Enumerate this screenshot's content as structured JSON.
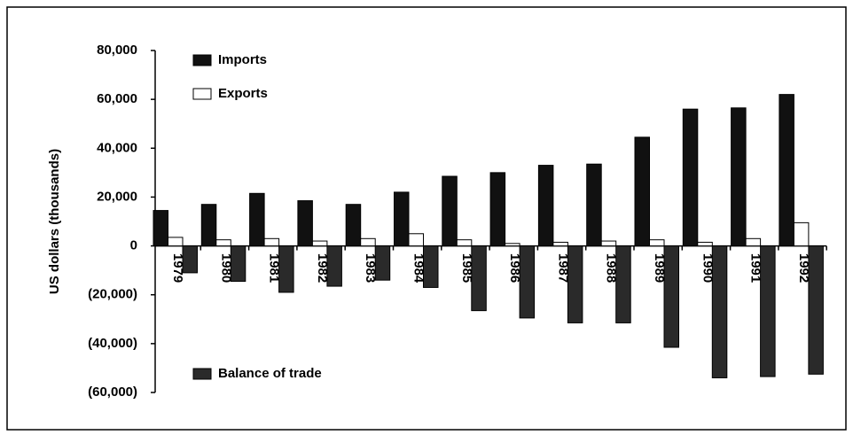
{
  "chart_data": {
    "type": "bar",
    "y_label": "US dollars (thousands)",
    "categories": [
      "1979",
      "1980",
      "1981",
      "1982",
      "1983",
      "1984",
      "1985",
      "1986",
      "1987",
      "1988",
      "1989",
      "1990",
      "1991",
      "1992"
    ],
    "series": [
      {
        "name": "Imports",
        "color": "#111111",
        "values": [
          14500,
          17000,
          21500,
          18500,
          17000,
          22000,
          28500,
          30000,
          33000,
          33500,
          44500,
          56000,
          56500,
          62000
        ]
      },
      {
        "name": "Exports",
        "color": "#ffffff",
        "values": [
          3500,
          2500,
          3000,
          2000,
          3000,
          5000,
          2500,
          1000,
          1500,
          2000,
          2500,
          1500,
          3000,
          9500
        ]
      },
      {
        "name": "Balance of trade",
        "color": "#2a2a2a",
        "values": [
          -11000,
          -14500,
          -19000,
          -16500,
          -14000,
          -17000,
          -26500,
          -29500,
          -31500,
          -31500,
          -41500,
          -54000,
          -53500,
          -52500
        ]
      }
    ],
    "ylim": [
      -60000,
      80000
    ],
    "yticks": [
      {
        "value": -60000,
        "label": "(60,000)"
      },
      {
        "value": -40000,
        "label": "(40,000)"
      },
      {
        "value": -20000,
        "label": "(20,000)"
      },
      0,
      {
        "value": 20000,
        "label": "20,000"
      },
      {
        "value": 40000,
        "label": "40,000"
      },
      {
        "value": 60000,
        "label": "60,000"
      },
      {
        "value": 80000,
        "label": "80,000"
      }
    ]
  }
}
